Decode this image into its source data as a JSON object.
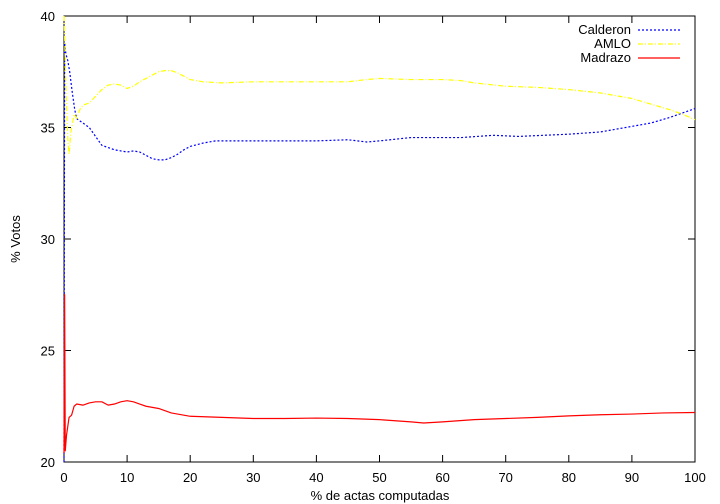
{
  "chart_data": {
    "type": "line",
    "title": "",
    "xlabel": "% de actas computadas",
    "ylabel": "% Votos",
    "xlim": [
      0,
      100
    ],
    "ylim": [
      20,
      40
    ],
    "xticks": [
      0,
      10,
      20,
      30,
      40,
      50,
      60,
      70,
      80,
      90,
      100
    ],
    "yticks": [
      20,
      25,
      30,
      35,
      40
    ],
    "grid": false,
    "legend_position": "top-right",
    "series": [
      {
        "name": "Calderon",
        "color": "#0000ff",
        "line_style": "dotted",
        "points": [
          [
            0,
            20
          ],
          [
            0.1,
            38.8
          ],
          [
            0.3,
            38.3
          ],
          [
            0.6,
            38
          ],
          [
            0.9,
            37.5
          ],
          [
            1.3,
            36.6
          ],
          [
            1.7,
            35.8
          ],
          [
            2,
            35.4
          ],
          [
            3,
            35.2
          ],
          [
            4,
            35
          ],
          [
            5,
            34.6
          ],
          [
            6,
            34.2
          ],
          [
            7,
            34.1
          ],
          [
            8,
            34
          ],
          [
            9,
            33.95
          ],
          [
            10,
            33.9
          ],
          [
            11,
            33.95
          ],
          [
            12,
            33.9
          ],
          [
            13,
            33.75
          ],
          [
            14,
            33.6
          ],
          [
            15,
            33.55
          ],
          [
            16,
            33.55
          ],
          [
            17,
            33.65
          ],
          [
            18,
            33.8
          ],
          [
            19,
            34
          ],
          [
            20,
            34.15
          ],
          [
            22,
            34.3
          ],
          [
            24,
            34.4
          ],
          [
            26,
            34.4
          ],
          [
            30,
            34.4
          ],
          [
            35,
            34.4
          ],
          [
            40,
            34.4
          ],
          [
            45,
            34.45
          ],
          [
            48,
            34.35
          ],
          [
            50,
            34.4
          ],
          [
            55,
            34.55
          ],
          [
            60,
            34.55
          ],
          [
            63,
            34.55
          ],
          [
            68,
            34.65
          ],
          [
            72,
            34.6
          ],
          [
            76,
            34.65
          ],
          [
            80,
            34.7
          ],
          [
            85,
            34.8
          ],
          [
            90,
            35.05
          ],
          [
            93,
            35.2
          ],
          [
            96,
            35.45
          ],
          [
            98,
            35.65
          ],
          [
            100,
            35.85
          ]
        ]
      },
      {
        "name": "AMLO",
        "color": "#ffff00",
        "line_style": "dash-dot",
        "points": [
          [
            0,
            40
          ],
          [
            0.2,
            38
          ],
          [
            0.4,
            36
          ],
          [
            0.6,
            34.5
          ],
          [
            0.8,
            33.8
          ],
          [
            1.1,
            34.8
          ],
          [
            1.6,
            35.6
          ],
          [
            2,
            35.4
          ],
          [
            2.5,
            35.8
          ],
          [
            3,
            36
          ],
          [
            4,
            36.1
          ],
          [
            5,
            36.4
          ],
          [
            6,
            36.7
          ],
          [
            7,
            36.9
          ],
          [
            8,
            36.95
          ],
          [
            9,
            36.9
          ],
          [
            10,
            36.75
          ],
          [
            11,
            36.85
          ],
          [
            12,
            37.05
          ],
          [
            13,
            37.2
          ],
          [
            14,
            37.35
          ],
          [
            15,
            37.5
          ],
          [
            16,
            37.55
          ],
          [
            17,
            37.55
          ],
          [
            18,
            37.45
          ],
          [
            19,
            37.3
          ],
          [
            20,
            37.15
          ],
          [
            22,
            37.05
          ],
          [
            25,
            37
          ],
          [
            30,
            37.05
          ],
          [
            35,
            37.05
          ],
          [
            40,
            37.05
          ],
          [
            45,
            37.05
          ],
          [
            48,
            37.15
          ],
          [
            50,
            37.2
          ],
          [
            55,
            37.15
          ],
          [
            60,
            37.15
          ],
          [
            63,
            37.1
          ],
          [
            65,
            37
          ],
          [
            70,
            36.85
          ],
          [
            75,
            36.8
          ],
          [
            80,
            36.7
          ],
          [
            85,
            36.55
          ],
          [
            90,
            36.3
          ],
          [
            93,
            36.05
          ],
          [
            96,
            35.8
          ],
          [
            98,
            35.6
          ],
          [
            100,
            35.35
          ]
        ]
      },
      {
        "name": "Madrazo",
        "color": "#ff0000",
        "line_style": "solid",
        "points": [
          [
            0,
            20.4
          ],
          [
            0.05,
            24
          ],
          [
            0.1,
            27.5
          ],
          [
            0.2,
            20.5
          ],
          [
            0.4,
            21.2
          ],
          [
            0.8,
            22
          ],
          [
            1.2,
            22.1
          ],
          [
            1.6,
            22.5
          ],
          [
            2,
            22.6
          ],
          [
            3,
            22.55
          ],
          [
            4,
            22.65
          ],
          [
            5,
            22.7
          ],
          [
            6,
            22.7
          ],
          [
            7,
            22.55
          ],
          [
            8,
            22.6
          ],
          [
            9,
            22.7
          ],
          [
            10,
            22.75
          ],
          [
            11,
            22.7
          ],
          [
            12,
            22.6
          ],
          [
            13,
            22.5
          ],
          [
            15,
            22.4
          ],
          [
            17,
            22.2
          ],
          [
            20,
            22.05
          ],
          [
            25,
            22
          ],
          [
            30,
            21.95
          ],
          [
            35,
            21.95
          ],
          [
            40,
            21.97
          ],
          [
            45,
            21.95
          ],
          [
            50,
            21.9
          ],
          [
            55,
            21.8
          ],
          [
            57,
            21.75
          ],
          [
            60,
            21.8
          ],
          [
            65,
            21.9
          ],
          [
            70,
            21.95
          ],
          [
            75,
            22
          ],
          [
            80,
            22.07
          ],
          [
            85,
            22.12
          ],
          [
            90,
            22.15
          ],
          [
            95,
            22.2
          ],
          [
            100,
            22.22
          ]
        ]
      }
    ]
  }
}
